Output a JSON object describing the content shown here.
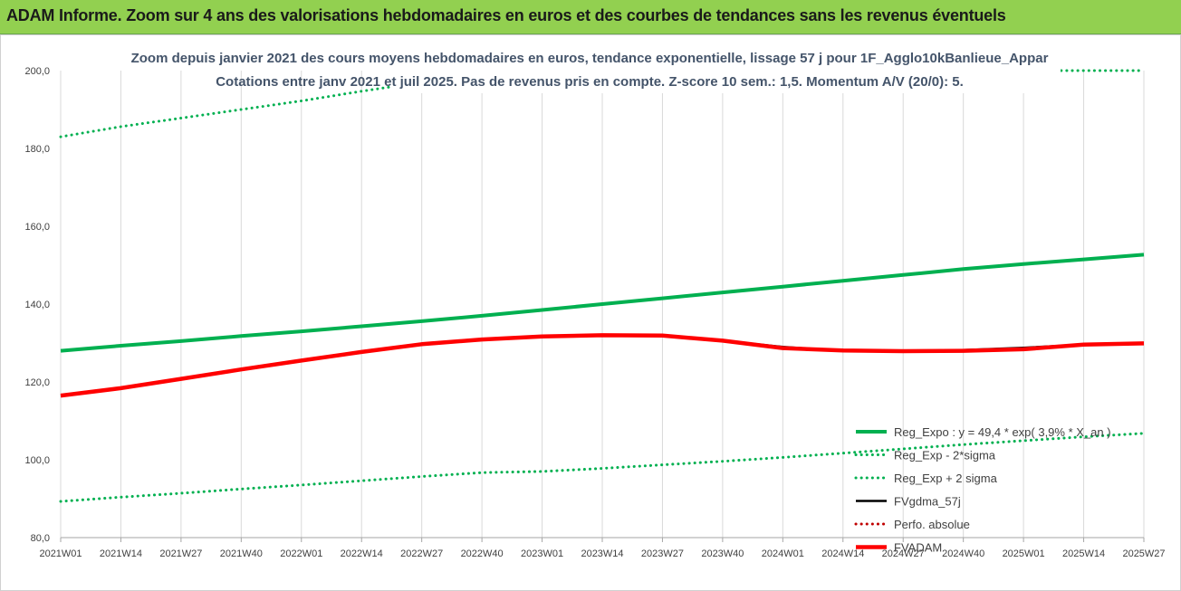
{
  "banner": {
    "title": "ADAM Informe. Zoom sur 4 ans des valorisations hebdomadaires en euros et des courbes de tendances sans les revenus éventuels",
    "bg": "#92d050"
  },
  "chart_data": {
    "type": "line",
    "title_lines": [
      "Zoom depuis janvier 2021 des cours moyens hebdomadaires en euros, tendance exponentielle, lissage 57 j pour 1F_Agglo10kBanlieue_Appar",
      "Cotations entre janv 2021 et juil 2025. Pas de revenus pris en compte. Z-score 10 sem.: 1,5. Momentum A/V (20/0): 5."
    ],
    "xlabel": "",
    "ylabel": "",
    "ylim": [
      80,
      200
    ],
    "yticks": [
      "80,0",
      "100,0",
      "120,0",
      "140,0",
      "160,0",
      "180,0",
      "200,0"
    ],
    "ytick_values": [
      80,
      100,
      120,
      140,
      160,
      180,
      200
    ],
    "x_categories": [
      "2021W01",
      "2021W14",
      "2021W27",
      "2021W40",
      "2022W01",
      "2022W14",
      "2022W27",
      "2022W40",
      "2023W01",
      "2023W14",
      "2023W27",
      "2023W40",
      "2024W01",
      "2024W14",
      "2024W27",
      "2024W40",
      "2025W01",
      "2025W14",
      "2025W27"
    ],
    "grid": "vertical",
    "legend_position": "right",
    "series": [
      {
        "name": "Reg_Expo : y = 49,4 * exp( 3,9% *  X_an )",
        "color": "#00b050",
        "style": "solid",
        "values": [
          128.0,
          129.3,
          130.5,
          131.8,
          133.0,
          134.3,
          135.6,
          137.0,
          138.5,
          140.0,
          141.5,
          143.0,
          144.5,
          146.0,
          147.5,
          149.0,
          150.3,
          151.5,
          152.7
        ]
      },
      {
        "name": "Reg_Exp - 2*sigma",
        "color": "#00b050",
        "style": "dotted",
        "values": [
          89.3,
          90.4,
          91.4,
          92.5,
          93.5,
          94.6,
          95.7,
          96.7,
          97.0,
          97.8,
          98.7,
          99.6,
          100.6,
          101.7,
          102.8,
          103.9,
          104.9,
          105.9,
          106.8
        ]
      },
      {
        "name": "Reg_Exp + 2 sigma",
        "color": "#00b050",
        "style": "dotted",
        "values": [
          183.0,
          185.6,
          187.8,
          190.0,
          192.2,
          194.7,
          197.0,
          199.5,
          200.0,
          200.0,
          200.0,
          200.0,
          200.0,
          200.0,
          200.0,
          200.0,
          200.0,
          200.0,
          200.0
        ]
      },
      {
        "name": "FVgdma_57j",
        "color": "#000000",
        "style": "solid",
        "values": [
          116.5,
          118.4,
          120.8,
          123.2,
          125.5,
          127.7,
          129.7,
          130.9,
          131.7,
          132.0,
          131.9,
          130.6,
          129.0,
          128.0,
          127.9,
          128.2,
          128.8,
          129.6,
          129.9
        ]
      },
      {
        "name": "Perfo. absolue",
        "color": "#c00000",
        "style": "dotted",
        "values": []
      },
      {
        "name": "FVADAM",
        "color": "#ff0000",
        "style": "thick",
        "values": [
          116.5,
          118.4,
          120.8,
          123.2,
          125.5,
          127.7,
          129.7,
          130.9,
          131.7,
          132.0,
          131.9,
          130.6,
          128.7,
          128.1,
          127.9,
          128.0,
          128.4,
          129.6,
          129.9
        ]
      }
    ]
  }
}
